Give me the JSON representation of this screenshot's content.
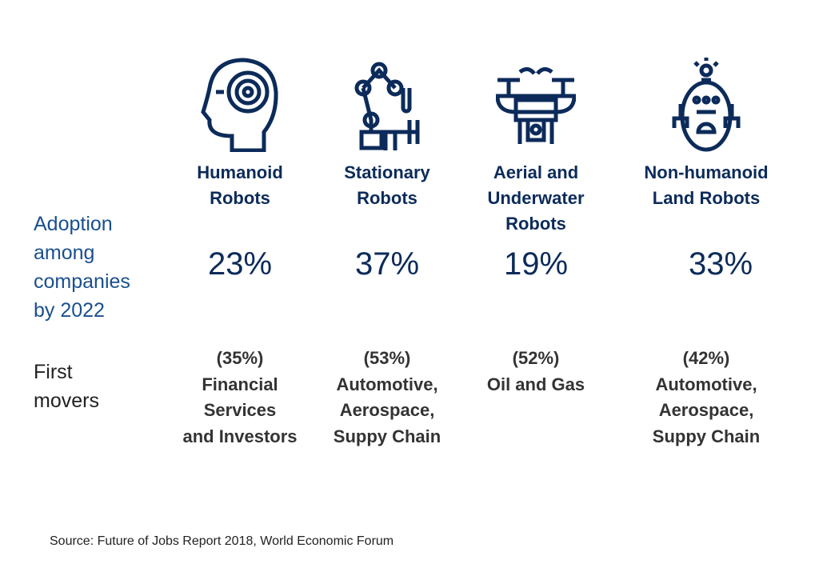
{
  "row_labels": {
    "adoption": [
      "Adoption",
      "among",
      "companies",
      "by 2022"
    ],
    "first_movers": [
      "First",
      "movers"
    ]
  },
  "columns": [
    {
      "icon": "humanoid-robot-head-icon",
      "title": [
        "Humanoid",
        "Robots"
      ],
      "adoption": "23%",
      "first_movers": [
        "(35%)",
        "Financial",
        "Services",
        "and Investors"
      ]
    },
    {
      "icon": "robotic-arm-icon",
      "title": [
        "Stationary",
        "Robots"
      ],
      "adoption": "37%",
      "first_movers": [
        "(53%)",
        "Automotive,",
        "Aerospace,",
        "Suppy Chain"
      ]
    },
    {
      "icon": "drone-icon",
      "title": [
        "Aerial and",
        "Underwater",
        "Robots"
      ],
      "adoption": "19%",
      "first_movers": [
        "(52%)",
        "Oil and Gas"
      ]
    },
    {
      "icon": "land-robot-icon",
      "title": [
        "Non-humanoid",
        "Land Robots"
      ],
      "adoption": "33%",
      "first_movers": [
        "(42%)",
        "Automotive,",
        "Aerospace,",
        "Suppy Chain"
      ]
    }
  ],
  "source": "Source: Future of Jobs Report 2018, World Economic Forum",
  "colors": {
    "primary": "#0c2b5a",
    "text": "#333333"
  }
}
